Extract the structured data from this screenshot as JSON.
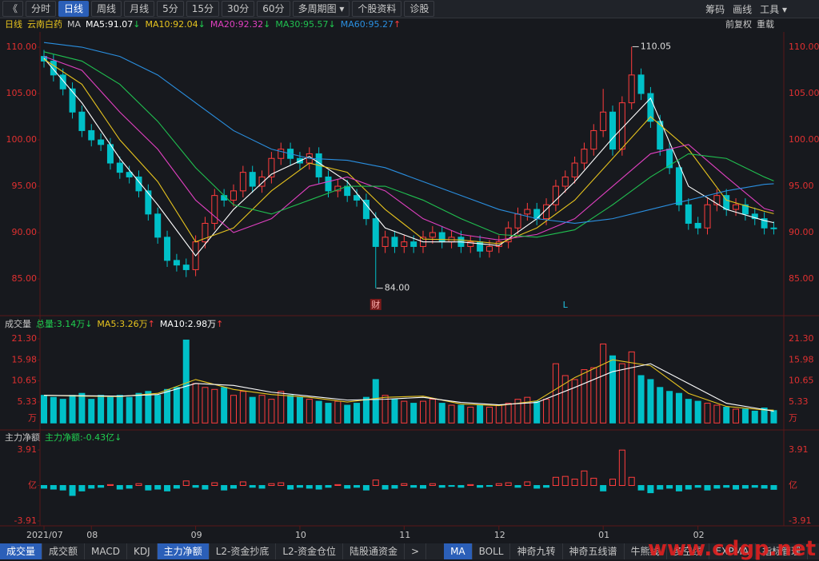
{
  "toolbar": {
    "left": [
      "《",
      "分时",
      "日线",
      "周线",
      "月线",
      "5分",
      "15分",
      "30分",
      "60分",
      "多周期图 ▾",
      "个股资料",
      "诊股"
    ],
    "active": "日线",
    "right": [
      "筹码",
      "画线",
      "工具 ▾"
    ]
  },
  "info_bar": {
    "period": "日线",
    "stock": "云南白药",
    "indicator": "MA",
    "items": [
      {
        "text": "MA5:91.07",
        "arrow": "↓",
        "color": "#ffffff"
      },
      {
        "text": "MA10:92.04",
        "arrow": "↓",
        "color": "#e6c31e"
      },
      {
        "text": "MA20:92.32",
        "arrow": "↓",
        "color": "#e040c0"
      },
      {
        "text": "MA30:95.57",
        "arrow": "↓",
        "color": "#20c050"
      },
      {
        "text": "MA60:95.27",
        "arrow": "↑",
        "color": "#2a8fe0"
      }
    ],
    "right": [
      "前复权",
      "重载"
    ]
  },
  "chart_data": [
    {
      "type": "candlestick",
      "up_color": "#ff3c3c",
      "down_color": "#00c0c8",
      "open": [
        109,
        108.5,
        107,
        105.5,
        103,
        101,
        100,
        99.5,
        97.5,
        96.5,
        96,
        94.5,
        92,
        89.5,
        87,
        86.5,
        86,
        89,
        91,
        94,
        93.5,
        94.5,
        96.5,
        95,
        96,
        98,
        99,
        98,
        97.5,
        98.5,
        96,
        94.5,
        95,
        94,
        93.5,
        91.5,
        88.5,
        89.5,
        88.5,
        89,
        88.5,
        89.5,
        90,
        89,
        89.5,
        88.5,
        89,
        88,
        88.5,
        89,
        90.5,
        92,
        92.5,
        91.5,
        93,
        95,
        96,
        97.5,
        99,
        101,
        103,
        99,
        104,
        107,
        105,
        102,
        99,
        97,
        93,
        91,
        90.5,
        93,
        94,
        92.5,
        93,
        92,
        91.5,
        90.5
      ],
      "close": [
        108.5,
        107,
        105.5,
        103,
        101,
        100,
        99.5,
        97.5,
        96.5,
        96,
        94.5,
        92,
        89.5,
        87,
        86.5,
        86,
        89,
        91,
        94,
        93.5,
        94.5,
        96.5,
        95,
        96,
        98,
        99,
        98,
        97.5,
        98.5,
        96,
        94.5,
        95,
        94,
        93.5,
        91.5,
        88.5,
        89.5,
        88.5,
        89,
        88.5,
        89.5,
        90,
        89,
        89.5,
        88.5,
        89,
        88,
        88.5,
        89,
        90.5,
        92,
        92.5,
        91.5,
        93,
        95,
        96,
        97.5,
        99,
        101,
        103,
        99,
        104,
        107,
        105,
        102,
        99,
        97,
        93,
        91,
        90.5,
        93,
        94,
        92.5,
        93,
        92,
        91.5,
        90.5,
        90.5
      ],
      "high": [
        109.7,
        109.2,
        107.7,
        106.2,
        103.7,
        101.7,
        100.7,
        100.2,
        98.2,
        97.2,
        96.7,
        95.2,
        92.7,
        90.2,
        87.7,
        87.2,
        89.7,
        91.7,
        94.7,
        94.7,
        95.2,
        97.2,
        97.2,
        96.7,
        98.7,
        99.7,
        99.7,
        98.7,
        99.2,
        99.2,
        96.7,
        95.7,
        95.7,
        94.7,
        94.2,
        92.2,
        90.2,
        90.2,
        89.7,
        89.7,
        90.2,
        90.7,
        90.7,
        90.2,
        90.2,
        89.7,
        89.7,
        89.2,
        89.7,
        91.2,
        92.7,
        93.2,
        93.2,
        93.7,
        95.7,
        96.7,
        98.2,
        99.7,
        101.7,
        105.5,
        103.7,
        104.7,
        110.05,
        107.7,
        105.7,
        102.7,
        99.7,
        97.7,
        93.7,
        91.7,
        93.7,
        94.7,
        94.7,
        93.7,
        93.7,
        92.7,
        92.2,
        91.2
      ],
      "low": [
        107.8,
        106.3,
        104.8,
        102.3,
        100.3,
        99.3,
        98.8,
        96.8,
        95.8,
        95.3,
        93.8,
        91.3,
        88.8,
        86.3,
        85.8,
        85.2,
        85.3,
        88.3,
        90.3,
        92.8,
        92.8,
        93.8,
        94.3,
        94.3,
        95.3,
        97.3,
        97.3,
        96.8,
        96.8,
        95.3,
        93.8,
        93.8,
        93.3,
        92.8,
        90.8,
        84.0,
        87.8,
        87.8,
        87.8,
        87.8,
        87.8,
        88.8,
        88.3,
        88.3,
        87.8,
        87.8,
        87.3,
        87.3,
        87.8,
        88.3,
        89.8,
        91.3,
        90.8,
        90.8,
        92.3,
        94.3,
        95.3,
        96.8,
        98.3,
        100.3,
        98.3,
        98.3,
        103.3,
        104.3,
        101.3,
        98.3,
        96.3,
        92.3,
        90.3,
        89.8,
        89.8,
        92.3,
        91.8,
        91.8,
        91.3,
        90.8,
        89.8,
        89.8
      ],
      "ylim": [
        81.47,
        111.64
      ],
      "yticks": [
        {
          "value": 85,
          "label": "85.00"
        },
        {
          "value": 90,
          "label": "90.00"
        },
        {
          "value": 95,
          "label": "95.00"
        },
        {
          "value": 100,
          "label": "100.00"
        },
        {
          "value": 105,
          "label": "105.00"
        },
        {
          "value": 110,
          "label": "110.00"
        }
      ],
      "lines": {
        "x": [
          0,
          4,
          8,
          12,
          16,
          20,
          24,
          28,
          32,
          36,
          40,
          44,
          48,
          52,
          56,
          60,
          64,
          68,
          72,
          76,
          77
        ],
        "series": [
          {
            "color": "#ffffff",
            "values": [
              108.8,
              104,
              98,
              93,
              87.5,
              92.5,
              96.3,
              98.2,
              95.5,
              90.5,
              89,
              89,
              88.6,
              91.5,
              95.5,
              100.2,
              104.5,
              95,
              92.5,
              91.3,
              91.07
            ]
          },
          {
            "color": "#e6c31e",
            "values": [
              108.7,
              106,
              100,
              95.5,
              89,
              90.5,
              94.5,
              97.5,
              96.5,
              92.5,
              89.3,
              89.2,
              88.8,
              90.5,
              93.5,
              98,
              102.5,
              99,
              93.5,
              92.3,
              92.04
            ]
          },
          {
            "color": "#e040c0",
            "values": [
              109,
              107.5,
              103,
              99,
              93.5,
              90,
              91.5,
              95,
              96,
              94.5,
              91.5,
              89.8,
              89.2,
              89.8,
              91.5,
              95,
              98.5,
              99.5,
              96,
              92.6,
              92.32
            ]
          },
          {
            "color": "#20c050",
            "values": [
              109.5,
              108.5,
              106,
              102,
              97,
              93,
              92,
              93.5,
              95,
              95,
              93.5,
              91.5,
              89.8,
              89.5,
              90.3,
              93,
              96,
              98.5,
              98,
              96,
              95.57
            ]
          },
          {
            "color": "#2a8fe0",
            "values": [
              110.5,
              110,
              109,
              107,
              104,
              101,
              99,
              98,
              97.8,
              97,
              95.5,
              94,
              92.5,
              91.5,
              91,
              91.5,
              92.5,
              93.5,
              94.5,
              95.2,
              95.27
            ]
          }
        ]
      },
      "annotations": [
        {
          "index": 62,
          "value": 110.05,
          "label": "110.05"
        },
        {
          "index": 35,
          "value": 84.0,
          "label": "84.00"
        }
      ],
      "markers": [
        {
          "index": 35,
          "text": "财"
        },
        {
          "index": 55,
          "text": "L"
        }
      ],
      "x_labels": [
        {
          "index": 0,
          "label": "2021/07"
        },
        {
          "index": 5,
          "label": "08"
        },
        {
          "index": 16,
          "label": "09"
        },
        {
          "index": 27,
          "label": "10"
        },
        {
          "index": 38,
          "label": "11"
        },
        {
          "index": 48,
          "label": "12"
        },
        {
          "index": 59,
          "label": "01"
        },
        {
          "index": 69,
          "label": "02"
        }
      ]
    },
    {
      "type": "bar",
      "title": "成交量",
      "legend": [
        {
          "text": "总量:3.14万",
          "arrow": "↓",
          "color": "#20d050"
        },
        {
          "text": "MA5:3.26万",
          "arrow": "↑",
          "color": "#e6c31e"
        },
        {
          "text": "MA10:2.98万",
          "arrow": "↑",
          "color": "#ffffff"
        }
      ],
      "values": [
        7,
        6.5,
        6,
        7,
        7.5,
        6,
        7,
        6.5,
        7,
        6.5,
        7.5,
        8,
        7,
        8.5,
        9,
        21,
        10,
        9,
        8.5,
        9,
        7,
        8,
        6.5,
        7,
        6,
        8,
        7,
        6.5,
        6,
        5.5,
        5,
        5.5,
        4.5,
        5,
        6.5,
        11,
        7,
        6,
        5.5,
        5,
        5.5,
        6,
        5,
        4.5,
        4.5,
        4,
        4.5,
        4,
        4.5,
        5,
        6,
        6.5,
        5.5,
        6,
        15,
        12,
        11,
        13.5,
        14,
        20,
        17,
        15,
        18,
        12,
        11,
        9,
        8,
        7.5,
        6,
        5.5,
        5,
        4.5,
        4,
        3.5,
        3.5,
        3,
        3.8,
        3.14
      ],
      "ylim": [
        0,
        23.12
      ],
      "yticks": [
        5.33,
        10.65,
        15.98,
        {
          "value": 21.3,
          "label": "21.30"
        }
      ],
      "y_unit": "万",
      "lines": {
        "x": [
          0,
          4,
          8,
          12,
          16,
          20,
          24,
          28,
          32,
          36,
          40,
          44,
          48,
          52,
          56,
          60,
          64,
          68,
          72,
          76,
          77
        ],
        "series": [
          {
            "color": "#e6c31e",
            "values": [
              7,
              6.8,
              6.7,
              7.5,
              11,
              8.5,
              7.2,
              6.5,
              5.3,
              6.5,
              6.8,
              4.8,
              4.4,
              5.6,
              11.5,
              16,
              14.5,
              7.5,
              4.2,
              3.3,
              3.26
            ]
          },
          {
            "color": "#ffffff",
            "values": [
              7,
              6.9,
              6.8,
              7.2,
              10,
              9.5,
              7.8,
              6.8,
              5.8,
              6,
              6.5,
              5.2,
              4.6,
              5.2,
              9,
              13,
              15,
              10,
              5,
              3.4,
              2.98
            ]
          }
        ]
      }
    },
    {
      "type": "bar",
      "title": "主力净额",
      "legend": [
        {
          "text": "主力净额:-0.43亿",
          "arrow": "↓",
          "color": "#20d050"
        }
      ],
      "values": [
        -0.3,
        -0.4,
        -0.5,
        -1.1,
        -0.6,
        -0.3,
        -0.2,
        0.1,
        -0.4,
        -0.3,
        0.2,
        -0.5,
        -0.4,
        -0.6,
        -0.3,
        0.5,
        -0.2,
        -0.4,
        0.3,
        -0.5,
        -0.3,
        0.4,
        -0.2,
        -0.3,
        0.2,
        0.3,
        -0.4,
        -0.2,
        -0.3,
        -0.4,
        -0.2,
        0.1,
        -0.3,
        -0.2,
        -0.5,
        0.6,
        -0.4,
        -0.3,
        0.2,
        -0.2,
        -0.3,
        0.2,
        -0.2,
        -0.1,
        -0.2,
        0.1,
        -0.2,
        -0.1,
        0.2,
        0.3,
        -0.2,
        0.4,
        -0.3,
        -0.2,
        0.9,
        1.0,
        0.7,
        1.6,
        0.8,
        -0.6,
        0.7,
        3.9,
        0.9,
        -0.5,
        -0.8,
        -0.4,
        -0.3,
        -0.6,
        -0.4,
        -0.2,
        -0.5,
        -0.3,
        -0.2,
        -0.4,
        -0.3,
        -0.2,
        -0.3,
        -0.43
      ],
      "ylim": [
        -4.18,
        4.62
      ],
      "yticks": [
        3.91,
        {
          "value": 0,
          "label": "亿"
        },
        -3.91
      ]
    }
  ],
  "bottom_tabs": {
    "left": [
      "成交量",
      "成交额",
      "MACD",
      "KDJ",
      "主力净额",
      "L2-资金抄底",
      "L2-资金仓位",
      "陆股通资金",
      ">"
    ],
    "right": [
      "MA",
      "BOLL",
      "神奇九转",
      "神奇五线谱",
      "牛熊线",
      "多空线",
      "EXPMA",
      "指标管理"
    ],
    "active": [
      "成交量",
      "主力净额",
      "MA"
    ]
  },
  "watermark": "www.cdgp.net"
}
